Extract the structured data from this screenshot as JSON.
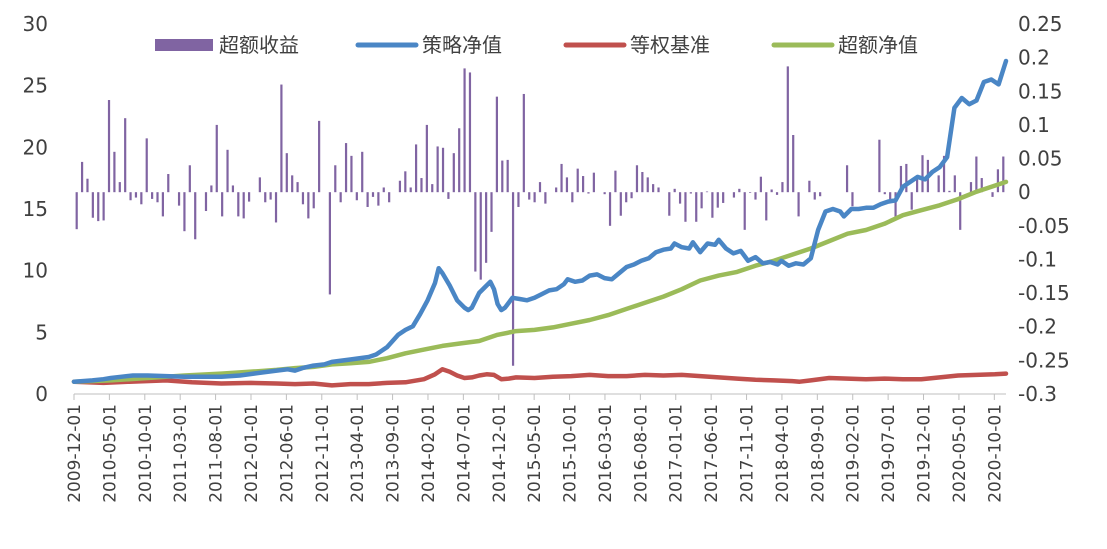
{
  "chart_data": {
    "type": "bar+line",
    "title": "",
    "legend_position": "top",
    "grid": false,
    "x_tick_labels": [
      "2009-12-01",
      "2010-05-01",
      "2010-10-01",
      "2011-03-01",
      "2011-08-01",
      "2012-01-01",
      "2012-06-01",
      "2012-11-01",
      "2013-04-01",
      "2013-09-01",
      "2014-02-01",
      "2014-07-01",
      "2014-12-01",
      "2015-05-01",
      "2015-10-01",
      "2016-03-01",
      "2016-08-01",
      "2017-01-01",
      "2017-06-01",
      "2017-11-01",
      "2018-04-01",
      "2018-09-01",
      "2019-02-01",
      "2019-07-01",
      "2019-12-01",
      "2020-05-01",
      "2020-10-01"
    ],
    "y_left": {
      "range": [
        0,
        30
      ],
      "ticks": [
        "0",
        "5",
        "10",
        "15",
        "20",
        "25",
        "30"
      ]
    },
    "y_right": {
      "range": [
        -0.3,
        0.25
      ],
      "ticks": [
        "-0.3",
        "-0.25",
        "-0.2",
        "-0.15",
        "-0.1",
        "-0.05",
        "0",
        "0.05",
        "0.1",
        "0.15",
        "0.2",
        "0.25"
      ]
    },
    "series": [
      {
        "name": "超额收益",
        "type": "bar",
        "axis": "right",
        "color": "#8064A2",
        "values": [
          -0.055,
          0.045,
          0.02,
          -0.038,
          -0.043,
          -0.042,
          0.137,
          0.06,
          0.015,
          0.11,
          -0.012,
          -0.008,
          -0.018,
          0.08,
          -0.01,
          -0.015,
          -0.036,
          0.027,
          0.0,
          -0.02,
          -0.058,
          0.04,
          -0.07,
          0.0,
          -0.028,
          0.01,
          0.1,
          -0.036,
          0.063,
          0.01,
          -0.036,
          -0.039,
          -0.014,
          0.0,
          0.022,
          -0.015,
          -0.011,
          -0.045,
          0.16,
          0.058,
          0.025,
          0.015,
          -0.018,
          -0.039,
          -0.024,
          0.106,
          0.0,
          -0.152,
          0.04,
          -0.015,
          0.073,
          0.054,
          -0.012,
          0.06,
          -0.022,
          -0.007,
          -0.02,
          0.007,
          -0.015,
          0.0,
          0.017,
          0.031,
          0.007,
          0.071,
          0.021,
          0.1,
          0.012,
          0.068,
          0.066,
          -0.01,
          0.058,
          0.095,
          0.184,
          0.178,
          -0.118,
          -0.13,
          -0.105,
          -0.059,
          0.142,
          0.047,
          0.048,
          -0.258,
          -0.022,
          0.146,
          -0.011,
          -0.015,
          0.015,
          -0.017,
          0.0,
          0.007,
          0.042,
          0.022,
          -0.015,
          0.035,
          0.024,
          -0.002,
          0.029,
          0.0,
          -0.003,
          -0.05,
          0.032,
          -0.035,
          -0.015,
          -0.009,
          0.04,
          0.03,
          0.022,
          0.012,
          0.007,
          0.0,
          -0.035,
          0.005,
          -0.017,
          -0.044,
          -0.002,
          -0.044,
          -0.024,
          0.001,
          -0.038,
          -0.023,
          -0.016,
          0.0,
          -0.008,
          0.005,
          -0.056,
          -0.001,
          -0.011,
          0.023,
          -0.042,
          0.004,
          -0.004,
          0.015,
          0.187,
          0.085,
          -0.036,
          0.0,
          0.017,
          -0.011,
          -0.006,
          0.0,
          0.0,
          0.0,
          0.0,
          0.04,
          -0.021,
          0.0,
          0.0,
          0.0,
          0.0,
          0.078,
          -0.003,
          -0.013,
          -0.037,
          0.039,
          0.042,
          -0.026,
          0.025,
          0.055,
          0.048,
          0.0,
          0.025,
          0.054,
          0.002,
          0.025,
          -0.056,
          0.0,
          0.015,
          0.053,
          0.021,
          0.0,
          -0.007,
          0.034,
          0.053
        ]
      },
      {
        "name": "策略净值",
        "type": "line",
        "axis": "left",
        "color": "#4A86C5",
        "points": [
          [
            0,
            1.0
          ],
          [
            5,
            1.1
          ],
          [
            8,
            1.2
          ],
          [
            10,
            1.3
          ],
          [
            13,
            1.4
          ],
          [
            16,
            1.5
          ],
          [
            20,
            1.5
          ],
          [
            25,
            1.45
          ],
          [
            30,
            1.4
          ],
          [
            35,
            1.4
          ],
          [
            40,
            1.4
          ],
          [
            45,
            1.5
          ],
          [
            50,
            1.7
          ],
          [
            55,
            1.9
          ],
          [
            58,
            2.0
          ],
          [
            60,
            1.9
          ],
          [
            62,
            2.1
          ],
          [
            65,
            2.3
          ],
          [
            68,
            2.4
          ],
          [
            70,
            2.6
          ],
          [
            75,
            2.8
          ],
          [
            80,
            3.0
          ],
          [
            82,
            3.2
          ],
          [
            85,
            3.8
          ],
          [
            88,
            4.8
          ],
          [
            90,
            5.2
          ],
          [
            92,
            5.5
          ],
          [
            94,
            6.5
          ],
          [
            96,
            7.6
          ],
          [
            98,
            9.0
          ],
          [
            99,
            10.2
          ],
          [
            100,
            9.8
          ],
          [
            102,
            8.8
          ],
          [
            104,
            7.6
          ],
          [
            106,
            7.0
          ],
          [
            107,
            6.8
          ],
          [
            108,
            7.0
          ],
          [
            110,
            8.2
          ],
          [
            112,
            8.8
          ],
          [
            113,
            9.1
          ],
          [
            114,
            8.5
          ],
          [
            115,
            7.3
          ],
          [
            116,
            6.8
          ],
          [
            117,
            7.0
          ],
          [
            119,
            7.8
          ],
          [
            121,
            7.7
          ],
          [
            123,
            7.6
          ],
          [
            125,
            7.8
          ],
          [
            127,
            8.1
          ],
          [
            129,
            8.4
          ],
          [
            131,
            8.5
          ],
          [
            133,
            8.9
          ],
          [
            134,
            9.3
          ],
          [
            136,
            9.1
          ],
          [
            138,
            9.2
          ],
          [
            140,
            9.6
          ],
          [
            142,
            9.7
          ],
          [
            144,
            9.4
          ],
          [
            146,
            9.3
          ],
          [
            148,
            9.8
          ],
          [
            150,
            10.3
          ],
          [
            152,
            10.5
          ],
          [
            154,
            10.8
          ],
          [
            156,
            11.0
          ],
          [
            158,
            11.5
          ],
          [
            160,
            11.7
          ],
          [
            162,
            11.8
          ],
          [
            163,
            12.2
          ],
          [
            165,
            11.9
          ],
          [
            167,
            11.8
          ],
          [
            168,
            12.3
          ],
          [
            170,
            11.5
          ],
          [
            172,
            12.2
          ],
          [
            174,
            12.1
          ],
          [
            175,
            12.5
          ],
          [
            177,
            11.8
          ],
          [
            179,
            11.4
          ],
          [
            181,
            11.6
          ],
          [
            183,
            10.8
          ],
          [
            185,
            11.1
          ],
          [
            187,
            10.6
          ],
          [
            189,
            10.7
          ],
          [
            191,
            10.5
          ],
          [
            192,
            10.8
          ],
          [
            194,
            10.4
          ],
          [
            196,
            10.6
          ],
          [
            198,
            10.5
          ],
          [
            200,
            11.0
          ],
          [
            202,
            13.3
          ],
          [
            204,
            14.8
          ],
          [
            206,
            15.0
          ],
          [
            208,
            14.8
          ],
          [
            209,
            14.4
          ],
          [
            211,
            15.0
          ],
          [
            213,
            15.0
          ],
          [
            215,
            15.1
          ],
          [
            217,
            15.1
          ],
          [
            219,
            15.4
          ],
          [
            221,
            15.6
          ],
          [
            223,
            15.7
          ],
          [
            225,
            16.8
          ],
          [
            227,
            17.2
          ],
          [
            229,
            17.6
          ],
          [
            231,
            17.4
          ],
          [
            233,
            18.0
          ],
          [
            235,
            18.4
          ],
          [
            237,
            19.2
          ],
          [
            239,
            23.2
          ],
          [
            241,
            24.0
          ],
          [
            243,
            23.5
          ],
          [
            245,
            23.8
          ],
          [
            247,
            25.3
          ],
          [
            249,
            25.5
          ],
          [
            251,
            25.1
          ],
          [
            253,
            27.0
          ]
        ]
      },
      {
        "name": "等权基准",
        "type": "line",
        "axis": "left",
        "color": "#C0504D",
        "points": [
          [
            0,
            1.0
          ],
          [
            8,
            0.9
          ],
          [
            15,
            1.0
          ],
          [
            25,
            1.1
          ],
          [
            32,
            0.95
          ],
          [
            40,
            0.85
          ],
          [
            48,
            0.9
          ],
          [
            55,
            0.85
          ],
          [
            60,
            0.8
          ],
          [
            65,
            0.85
          ],
          [
            70,
            0.7
          ],
          [
            75,
            0.8
          ],
          [
            80,
            0.8
          ],
          [
            85,
            0.9
          ],
          [
            90,
            0.95
          ],
          [
            95,
            1.2
          ],
          [
            98,
            1.6
          ],
          [
            100,
            2.0
          ],
          [
            102,
            1.8
          ],
          [
            104,
            1.5
          ],
          [
            106,
            1.3
          ],
          [
            108,
            1.35
          ],
          [
            110,
            1.5
          ],
          [
            112,
            1.6
          ],
          [
            114,
            1.55
          ],
          [
            116,
            1.2
          ],
          [
            118,
            1.25
          ],
          [
            120,
            1.35
          ],
          [
            125,
            1.3
          ],
          [
            130,
            1.4
          ],
          [
            135,
            1.45
          ],
          [
            140,
            1.55
          ],
          [
            145,
            1.45
          ],
          [
            150,
            1.45
          ],
          [
            155,
            1.55
          ],
          [
            160,
            1.5
          ],
          [
            165,
            1.55
          ],
          [
            170,
            1.45
          ],
          [
            175,
            1.35
          ],
          [
            180,
            1.25
          ],
          [
            185,
            1.15
          ],
          [
            190,
            1.1
          ],
          [
            195,
            1.05
          ],
          [
            197,
            1.0
          ],
          [
            200,
            1.1
          ],
          [
            205,
            1.3
          ],
          [
            210,
            1.25
          ],
          [
            215,
            1.2
          ],
          [
            220,
            1.25
          ],
          [
            225,
            1.2
          ],
          [
            230,
            1.2
          ],
          [
            235,
            1.35
          ],
          [
            240,
            1.5
          ],
          [
            245,
            1.55
          ],
          [
            250,
            1.6
          ],
          [
            253,
            1.65
          ]
        ]
      },
      {
        "name": "超额净值",
        "type": "line",
        "axis": "left",
        "color": "#9BBB59",
        "points": [
          [
            0,
            1.0
          ],
          [
            10,
            1.1
          ],
          [
            20,
            1.3
          ],
          [
            30,
            1.5
          ],
          [
            40,
            1.65
          ],
          [
            50,
            1.85
          ],
          [
            55,
            1.95
          ],
          [
            60,
            2.1
          ],
          [
            65,
            2.2
          ],
          [
            70,
            2.4
          ],
          [
            75,
            2.5
          ],
          [
            80,
            2.6
          ],
          [
            85,
            2.9
          ],
          [
            90,
            3.3
          ],
          [
            95,
            3.6
          ],
          [
            100,
            3.9
          ],
          [
            105,
            4.1
          ],
          [
            110,
            4.3
          ],
          [
            115,
            4.8
          ],
          [
            120,
            5.1
          ],
          [
            125,
            5.2
          ],
          [
            130,
            5.4
          ],
          [
            135,
            5.7
          ],
          [
            140,
            6.0
          ],
          [
            145,
            6.4
          ],
          [
            150,
            6.9
          ],
          [
            155,
            7.4
          ],
          [
            160,
            7.9
          ],
          [
            165,
            8.5
          ],
          [
            170,
            9.2
          ],
          [
            175,
            9.6
          ],
          [
            180,
            9.9
          ],
          [
            185,
            10.4
          ],
          [
            190,
            10.8
          ],
          [
            195,
            11.3
          ],
          [
            200,
            11.8
          ],
          [
            205,
            12.4
          ],
          [
            210,
            13.0
          ],
          [
            215,
            13.3
          ],
          [
            220,
            13.8
          ],
          [
            225,
            14.5
          ],
          [
            230,
            14.9
          ],
          [
            235,
            15.3
          ],
          [
            240,
            15.8
          ],
          [
            245,
            16.4
          ],
          [
            250,
            16.9
          ],
          [
            253,
            17.2
          ]
        ]
      }
    ]
  }
}
